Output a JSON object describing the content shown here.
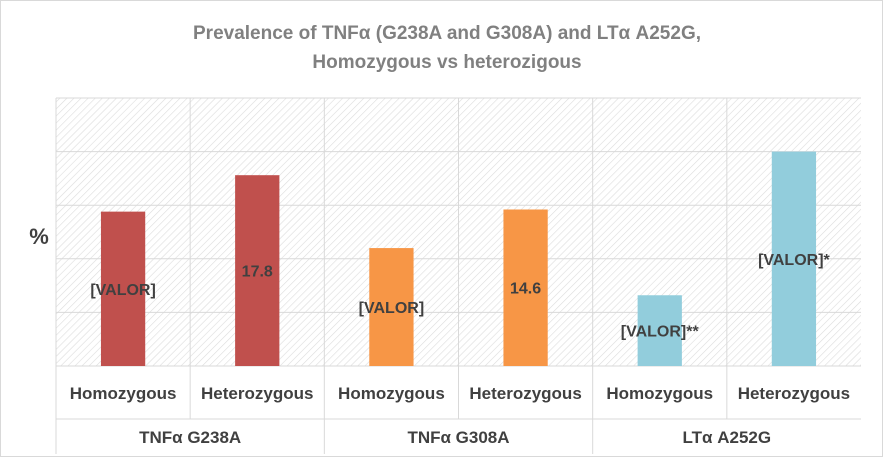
{
  "chart_data": {
    "type": "bar",
    "title": [
      "Prevalence of TNFα (G238A and G308A) and LTα A252G,",
      "Homozygous vs heterozigous"
    ],
    "ylabel": "%",
    "xlabel": "",
    "ylim": [
      0,
      25
    ],
    "grid": true,
    "legend": "none",
    "groups": [
      {
        "name": "TNFα G238A",
        "color": "#c0504d",
        "bars": [
          {
            "category": "Homozygous",
            "value": 14.4,
            "label": "[VALOR]"
          },
          {
            "category": "Heterozygous",
            "value": 17.8,
            "label": "17.8"
          }
        ]
      },
      {
        "name": "TNFα G308A",
        "color": "#f79646",
        "bars": [
          {
            "category": "Homozygous",
            "value": 11.0,
            "label": "[VALOR]"
          },
          {
            "category": "Heterozygous",
            "value": 14.6,
            "label": "14.6"
          }
        ]
      },
      {
        "name": "LTα A252G",
        "color": "#92cddc",
        "bars": [
          {
            "category": "Homozygous",
            "value": 6.6,
            "label": "[VALOR]**"
          },
          {
            "category": "Heterozygous",
            "value": 20.0,
            "label": "[VALOR]*"
          }
        ]
      }
    ]
  }
}
